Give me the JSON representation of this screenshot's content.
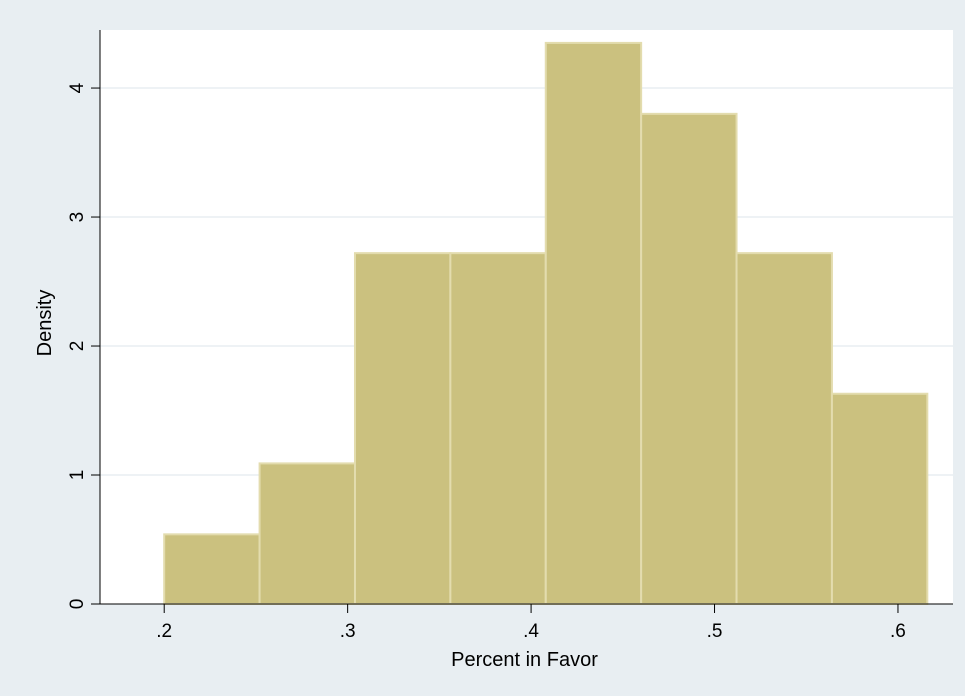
{
  "chart_data": {
    "type": "bar",
    "subtype": "histogram",
    "xlabel": "Percent in Favor",
    "ylabel": "Density",
    "xlim": [
      0.165,
      0.63
    ],
    "ylim": [
      0,
      4.45
    ],
    "x_ticks": [
      0.2,
      0.3,
      0.4,
      0.5,
      0.6
    ],
    "x_tick_labels": [
      ".2",
      ".3",
      ".4",
      ".5",
      ".6"
    ],
    "y_ticks": [
      0,
      1,
      2,
      3,
      4
    ],
    "y_tick_labels": [
      "0",
      "1",
      "2",
      "3",
      "4"
    ],
    "grid": true,
    "bins": [
      {
        "start": 0.2,
        "end": 0.252,
        "density": 0.54
      },
      {
        "start": 0.252,
        "end": 0.304,
        "density": 1.09
      },
      {
        "start": 0.304,
        "end": 0.356,
        "density": 2.72
      },
      {
        "start": 0.356,
        "end": 0.408,
        "density": 2.72
      },
      {
        "start": 0.408,
        "end": 0.46,
        "density": 4.35
      },
      {
        "start": 0.46,
        "end": 0.512,
        "density": 3.8
      },
      {
        "start": 0.512,
        "end": 0.564,
        "density": 2.72
      },
      {
        "start": 0.564,
        "end": 0.616,
        "density": 1.63
      }
    ],
    "colors": {
      "outer_background": "#e8eef2",
      "plot_background": "#ffffff",
      "bar_fill": "#cbc17f",
      "bar_stroke": "#e3dcae",
      "grid": "#e8eef2",
      "axis": "#000000"
    }
  }
}
